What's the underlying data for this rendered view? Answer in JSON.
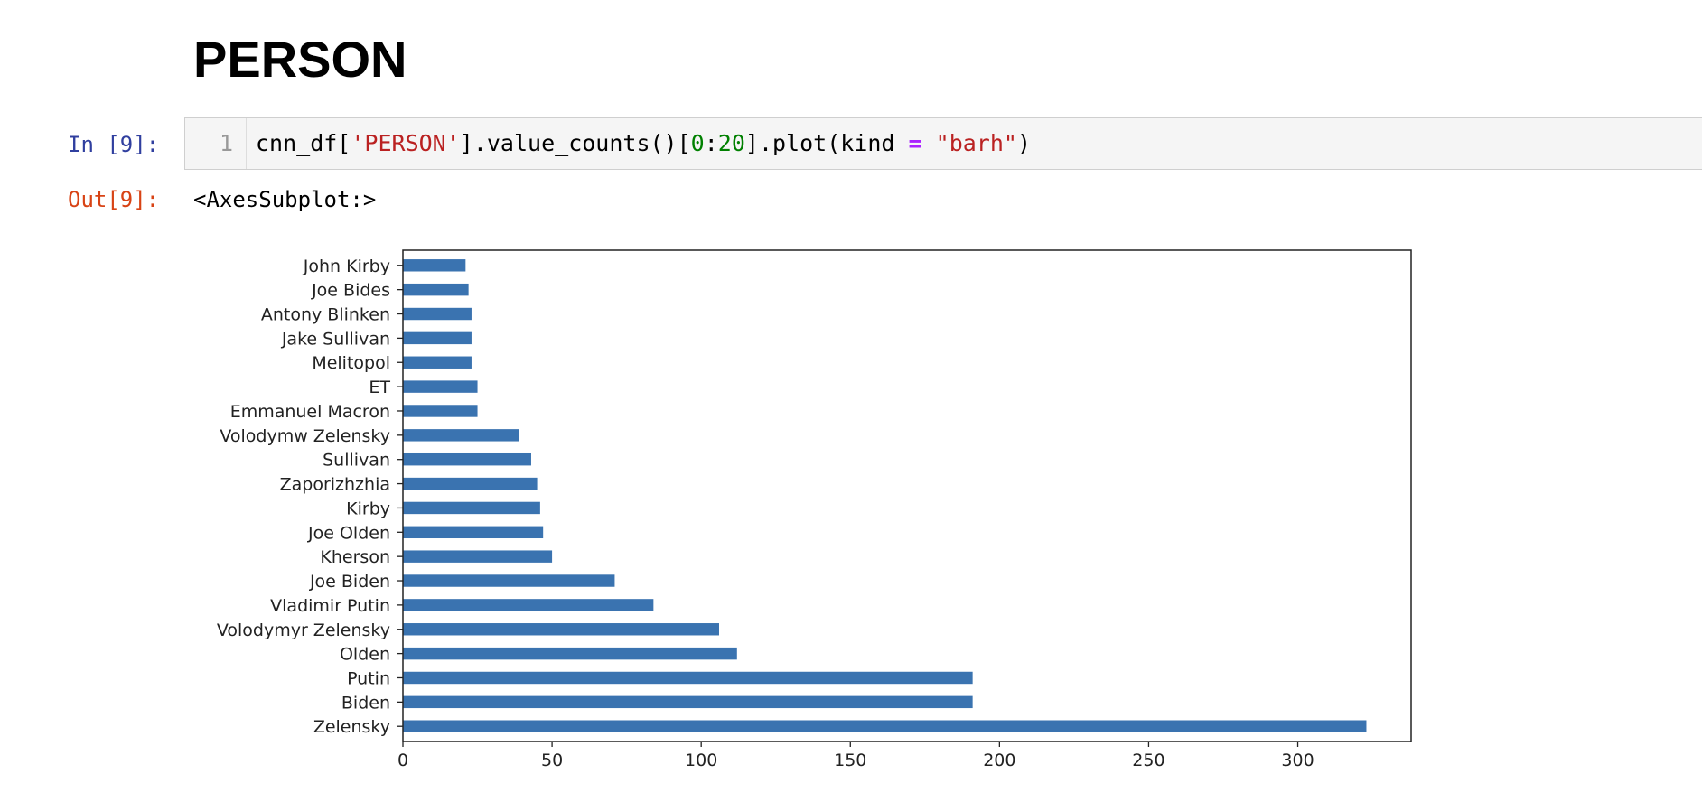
{
  "heading": "PERSON",
  "cell_in": {
    "prompt": "In [9]:",
    "line_number": "1",
    "code_tokens": [
      {
        "text": "cnn_df[",
        "kind": "plain"
      },
      {
        "text": "'PERSON'",
        "kind": "str"
      },
      {
        "text": "].value_counts()[",
        "kind": "plain"
      },
      {
        "text": "0",
        "kind": "num"
      },
      {
        "text": ":",
        "kind": "plain"
      },
      {
        "text": "20",
        "kind": "num"
      },
      {
        "text": "].plot(kind ",
        "kind": "plain"
      },
      {
        "text": "=",
        "kind": "op"
      },
      {
        "text": " ",
        "kind": "plain"
      },
      {
        "text": "\"barh\"",
        "kind": "str"
      },
      {
        "text": ")",
        "kind": "plain"
      }
    ]
  },
  "cell_out": {
    "prompt": "Out[9]:",
    "text": "<AxesSubplot:>"
  },
  "colors": {
    "bar": "#3a73b0"
  },
  "chart_data": {
    "type": "bar",
    "orientation": "horizontal",
    "categories": [
      "Zelensky",
      "Biden",
      "Putin",
      "Olden",
      "Volodymyr Zelensky",
      "Vladimir Putin",
      "Joe Biden",
      "Kherson",
      "Joe Olden",
      "Kirby",
      "Zaporizhzhia",
      "Sullivan",
      "Volodymw Zelensky",
      "Emmanuel Macron",
      "ET",
      "Melitopol",
      "Jake Sullivan",
      "Antony Blinken",
      "Joe Bides",
      "John Kirby"
    ],
    "values": [
      323,
      191,
      191,
      112,
      106,
      84,
      71,
      50,
      47,
      46,
      45,
      43,
      39,
      25,
      25,
      23,
      23,
      23,
      22,
      21
    ],
    "xlim": [
      0,
      338
    ],
    "xticks": [
      0,
      50,
      100,
      150,
      200,
      250,
      300
    ],
    "title": "",
    "xlabel": "",
    "ylabel": "",
    "grid": false,
    "legend": false
  }
}
